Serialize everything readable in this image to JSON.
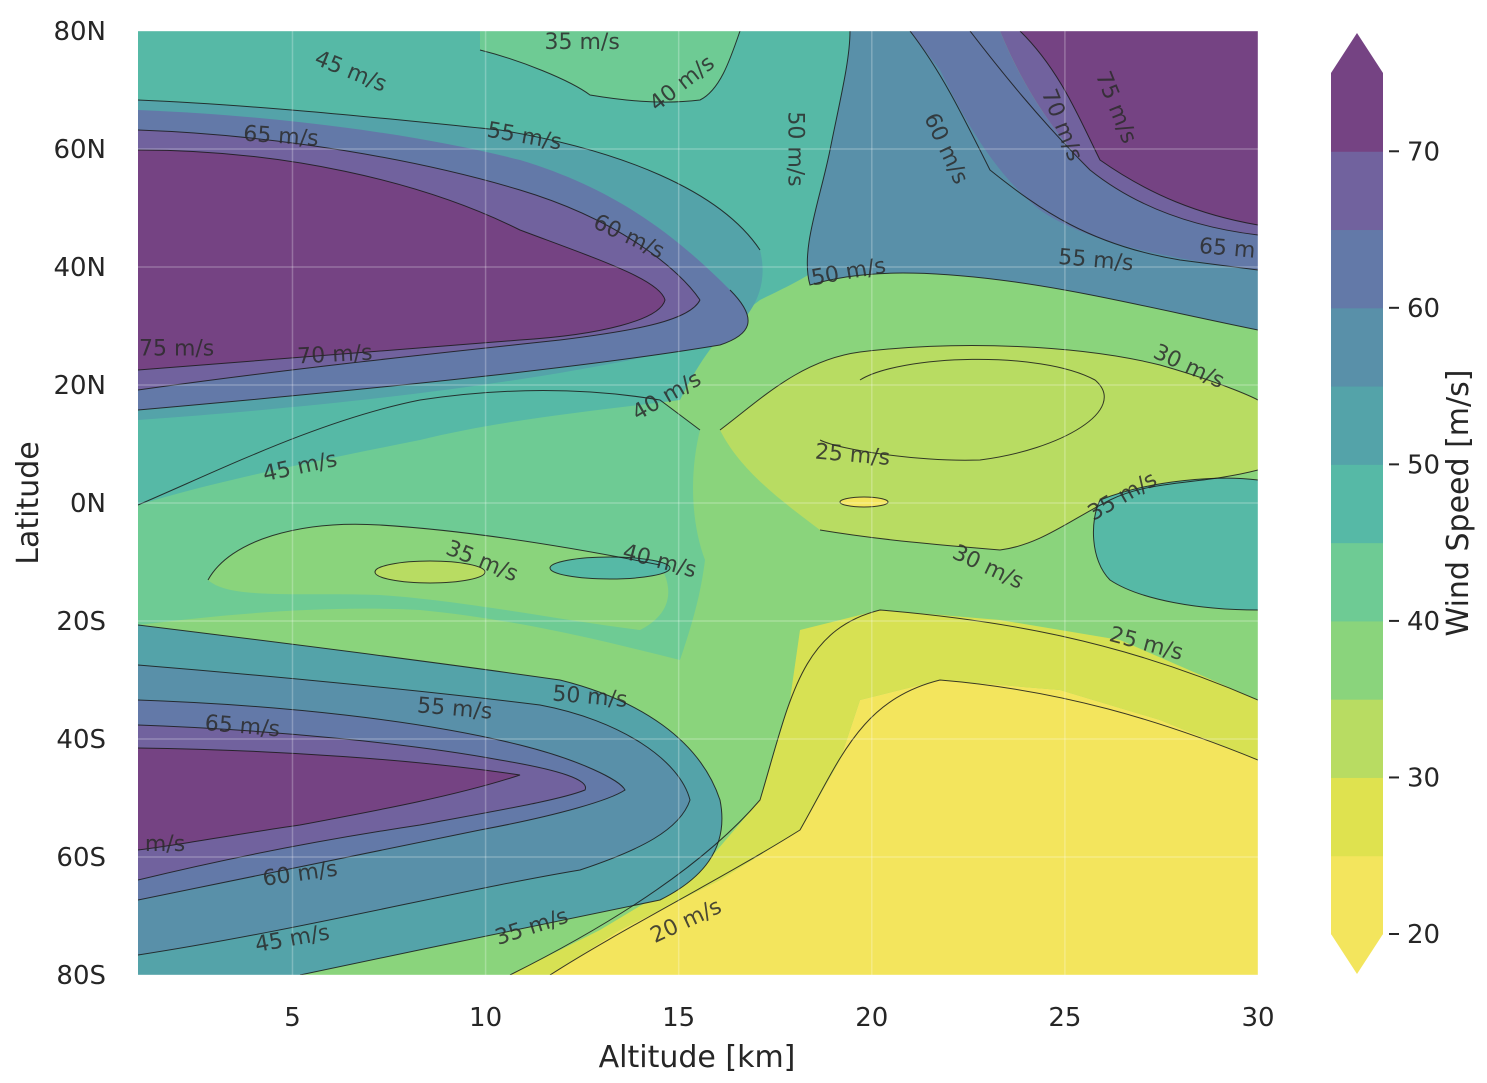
{
  "chart_data": {
    "type": "contour",
    "xlabel": "Altitude [km]",
    "ylabel": "Latitude",
    "xlim": [
      1,
      30
    ],
    "ylim": [
      -80,
      80
    ],
    "x_ticks": [
      5,
      10,
      15,
      20,
      25,
      30
    ],
    "x_tick_labels": [
      "5",
      "10",
      "15",
      "20",
      "25",
      "30"
    ],
    "y_ticks": [
      80,
      60,
      40,
      20,
      0,
      -20,
      -40,
      -60,
      -80
    ],
    "y_tick_labels": [
      "80N",
      "60N",
      "40N",
      "20N",
      "0N",
      "20S",
      "40S",
      "60S",
      "80S"
    ],
    "colorbar": {
      "label": "Wind Speed [m/s]",
      "levels": [
        20,
        25,
        30,
        35,
        40,
        45,
        50,
        55,
        60,
        65,
        70,
        75
      ],
      "ticks": [
        20,
        30,
        40,
        50,
        60,
        70
      ],
      "tick_labels": [
        "20",
        "30",
        "40",
        "50",
        "60",
        "70"
      ],
      "extend": "both",
      "colors": [
        "#f3e55d",
        "#dfe24f",
        "#b8dc62",
        "#8ad47c",
        "#6ecb94",
        "#56b9a6",
        "#54a3a9",
        "#5990a9",
        "#6379a8",
        "#71629e",
        "#754383"
      ]
    },
    "contour_labels": [
      {
        "text": "35 m/s",
        "x": 12.5,
        "y": 78,
        "angle": 0
      },
      {
        "text": "45 m/s",
        "x": 6.5,
        "y": 73,
        "angle": 22
      },
      {
        "text": "40 m/s",
        "x": 15.1,
        "y": 71,
        "angle": -38
      },
      {
        "text": "65 m/s",
        "x": 4.7,
        "y": 62,
        "angle": 4
      },
      {
        "text": "55 m/s",
        "x": 11.0,
        "y": 62,
        "angle": 10
      },
      {
        "text": "50 m/s",
        "x": 18.0,
        "y": 60,
        "angle": 90
      },
      {
        "text": "60 m/s",
        "x": 21.9,
        "y": 60,
        "angle": 65
      },
      {
        "text": "70 m/s",
        "x": 24.9,
        "y": 64,
        "angle": 68
      },
      {
        "text": "75 m/s",
        "x": 26.3,
        "y": 67,
        "angle": 68
      },
      {
        "text": "60 m/s",
        "x": 13.7,
        "y": 45,
        "angle": 25
      },
      {
        "text": "50 m/s",
        "x": 19.4,
        "y": 39,
        "angle": -10
      },
      {
        "text": "55 m/s",
        "x": 25.8,
        "y": 41,
        "angle": 5
      },
      {
        "text": "65 m",
        "x": 29.2,
        "y": 43,
        "angle": 5
      },
      {
        "text": "75 m/s",
        "x": 2.0,
        "y": 26,
        "angle": 0
      },
      {
        "text": "70 m/s",
        "x": 6.1,
        "y": 25,
        "angle": -3
      },
      {
        "text": "30 m/s",
        "x": 28.2,
        "y": 23,
        "angle": 25
      },
      {
        "text": "40 m/s",
        "x": 14.7,
        "y": 18,
        "angle": -30
      },
      {
        "text": "25 m/s",
        "x": 19.5,
        "y": 8,
        "angle": 5
      },
      {
        "text": "45 m/s",
        "x": 5.2,
        "y": 6,
        "angle": -12
      },
      {
        "text": "35 m/s",
        "x": 26.5,
        "y": 1,
        "angle": -30
      },
      {
        "text": "35 m/s",
        "x": 9.9,
        "y": -10,
        "angle": 22
      },
      {
        "text": "40 m/s",
        "x": 14.5,
        "y": -10,
        "angle": 15
      },
      {
        "text": "30 m/s",
        "x": 23.0,
        "y": -11,
        "angle": 25
      },
      {
        "text": "25 m/s",
        "x": 27.1,
        "y": -24,
        "angle": 15
      },
      {
        "text": "50 m/s",
        "x": 12.7,
        "y": -33,
        "angle": 5
      },
      {
        "text": "55 m/s",
        "x": 9.2,
        "y": -35,
        "angle": 5
      },
      {
        "text": "65 m/s",
        "x": 3.7,
        "y": -38,
        "angle": 5
      },
      {
        "text": "m/s",
        "x": 1.7,
        "y": -58,
        "angle": 0
      },
      {
        "text": "60 m/s",
        "x": 5.2,
        "y": -63,
        "angle": -8
      },
      {
        "text": "45 m/s",
        "x": 5.0,
        "y": -74,
        "angle": -10
      },
      {
        "text": "35 m/s",
        "x": 11.2,
        "y": -72,
        "angle": -18
      },
      {
        "text": "20 m/s",
        "x": 15.2,
        "y": -71,
        "angle": -25
      }
    ]
  }
}
